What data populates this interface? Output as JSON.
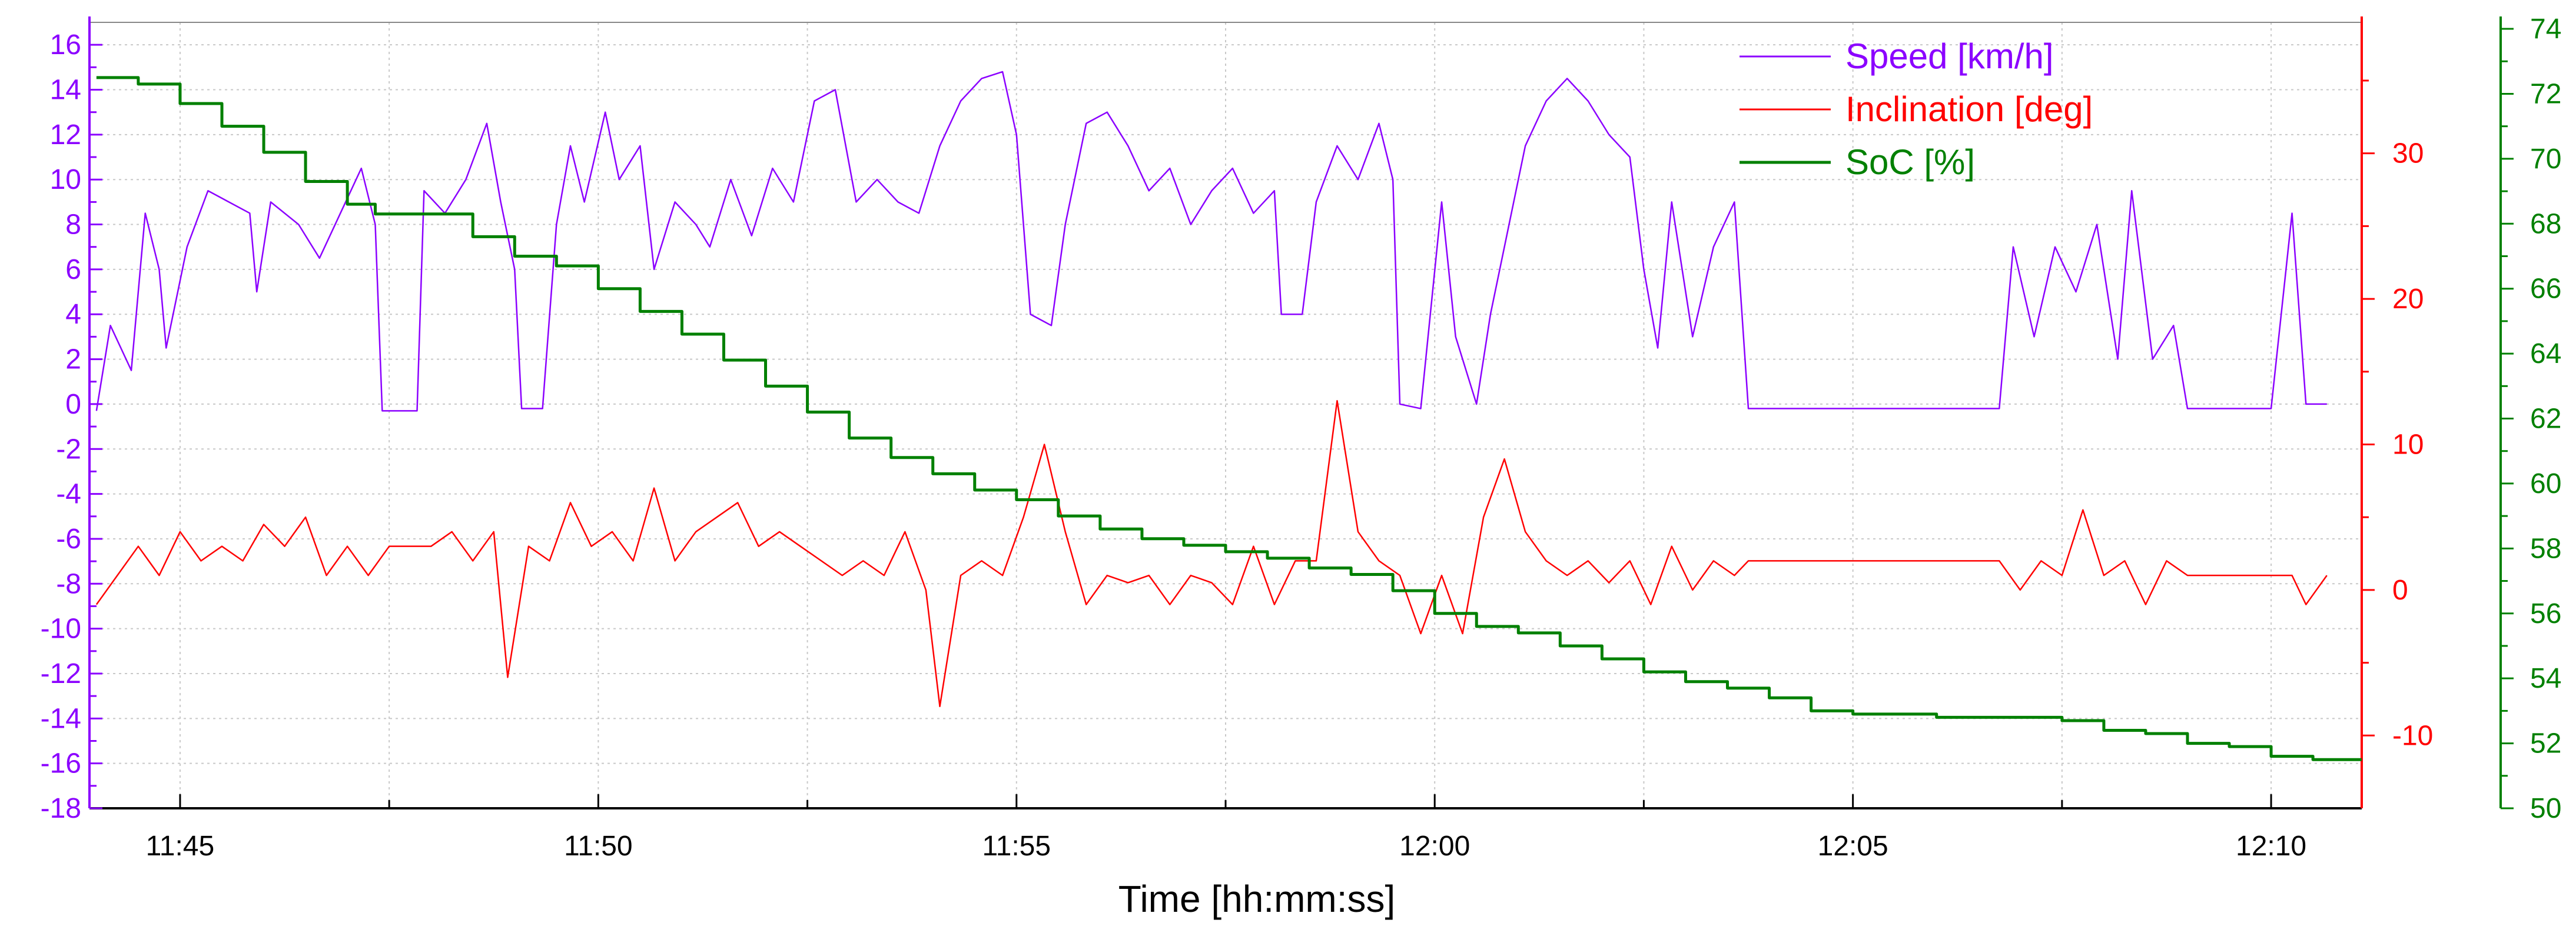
{
  "chart_data": {
    "type": "line",
    "xlabel": "Time [hh:mm:ss]",
    "x_range": [
      "11:43:55",
      "12:11:05"
    ],
    "x_ticks": [
      "11:45",
      "11:50",
      "11:55",
      "12:00",
      "12:05",
      "12:10"
    ],
    "grid": true,
    "legend_placement": "top-right",
    "axes": [
      {
        "id": "speed",
        "side": "left",
        "min": -18,
        "max": 17,
        "ticks": [
          "16",
          "14",
          "12",
          "10",
          "8",
          "6",
          "4",
          "2",
          "0",
          "-2",
          "-4",
          "-6",
          "-8",
          "-10",
          "-12",
          "-14",
          "-16",
          "-18"
        ],
        "color": "#8b00ff"
      },
      {
        "id": "incl",
        "side": "right-inner",
        "min": -15,
        "max": 39,
        "ticks": [
          "30",
          "20",
          "10",
          "0",
          "-10"
        ],
        "color": "#ff0000"
      },
      {
        "id": "soc",
        "side": "right-outer",
        "min": 50,
        "max": 74.2,
        "ticks": [
          "74",
          "72",
          "70",
          "68",
          "66",
          "64",
          "62",
          "60",
          "58",
          "56",
          "54",
          "52",
          "50"
        ],
        "color": "#008000"
      }
    ],
    "series": [
      {
        "name": "Speed [km/h]",
        "axis": "speed",
        "color": "#8b00ff",
        "step": false,
        "points": [
          [
            "11:44:00",
            -0.3
          ],
          [
            "11:44:10",
            3.5
          ],
          [
            "11:44:25",
            1.5
          ],
          [
            "11:44:35",
            8.5
          ],
          [
            "11:44:45",
            6.0
          ],
          [
            "11:44:50",
            2.5
          ],
          [
            "11:45:05",
            7.0
          ],
          [
            "11:45:20",
            9.5
          ],
          [
            "11:45:35",
            9.0
          ],
          [
            "11:45:50",
            8.5
          ],
          [
            "11:45:55",
            5.0
          ],
          [
            "11:46:05",
            9.0
          ],
          [
            "11:46:25",
            8.0
          ],
          [
            "11:46:40",
            6.5
          ],
          [
            "11:46:55",
            8.5
          ],
          [
            "11:47:10",
            10.5
          ],
          [
            "11:47:20",
            8.0
          ],
          [
            "11:47:25",
            -0.3
          ],
          [
            "11:47:50",
            -0.3
          ],
          [
            "11:47:55",
            9.5
          ],
          [
            "11:48:10",
            8.5
          ],
          [
            "11:48:25",
            10.0
          ],
          [
            "11:48:40",
            12.5
          ],
          [
            "11:48:50",
            9.0
          ],
          [
            "11:49:00",
            6.0
          ],
          [
            "11:49:05",
            -0.2
          ],
          [
            "11:49:20",
            -0.2
          ],
          [
            "11:49:30",
            8.0
          ],
          [
            "11:49:40",
            11.5
          ],
          [
            "11:49:50",
            9.0
          ],
          [
            "11:50:05",
            13.0
          ],
          [
            "11:50:15",
            10.0
          ],
          [
            "11:50:30",
            11.5
          ],
          [
            "11:50:40",
            6.0
          ],
          [
            "11:50:55",
            9.0
          ],
          [
            "11:51:10",
            8.0
          ],
          [
            "11:51:20",
            7.0
          ],
          [
            "11:51:35",
            10.0
          ],
          [
            "11:51:50",
            7.5
          ],
          [
            "11:52:05",
            10.5
          ],
          [
            "11:52:20",
            9.0
          ],
          [
            "11:52:35",
            13.5
          ],
          [
            "11:52:50",
            14.0
          ],
          [
            "11:53:05",
            9.0
          ],
          [
            "11:53:20",
            10.0
          ],
          [
            "11:53:35",
            9.0
          ],
          [
            "11:53:50",
            8.5
          ],
          [
            "11:54:05",
            11.5
          ],
          [
            "11:54:20",
            13.5
          ],
          [
            "11:54:35",
            14.5
          ],
          [
            "11:54:50",
            14.8
          ],
          [
            "11:55:00",
            12.0
          ],
          [
            "11:55:10",
            4.0
          ],
          [
            "11:55:25",
            3.5
          ],
          [
            "11:55:35",
            8.0
          ],
          [
            "11:55:50",
            12.5
          ],
          [
            "11:56:05",
            13.0
          ],
          [
            "11:56:20",
            11.5
          ],
          [
            "11:56:35",
            9.5
          ],
          [
            "11:56:50",
            10.5
          ],
          [
            "11:57:05",
            8.0
          ],
          [
            "11:57:20",
            9.5
          ],
          [
            "11:57:35",
            10.5
          ],
          [
            "11:57:50",
            8.5
          ],
          [
            "11:58:05",
            9.5
          ],
          [
            "11:58:10",
            4.0
          ],
          [
            "11:58:25",
            4.0
          ],
          [
            "11:58:35",
            9.0
          ],
          [
            "11:58:50",
            11.5
          ],
          [
            "11:59:05",
            10.0
          ],
          [
            "11:59:20",
            12.5
          ],
          [
            "11:59:30",
            10.0
          ],
          [
            "11:59:35",
            0.0
          ],
          [
            "11:59:50",
            -0.2
          ],
          [
            "12:00:05",
            9.0
          ],
          [
            "12:00:15",
            3.0
          ],
          [
            "12:00:30",
            0.0
          ],
          [
            "12:00:40",
            4.0
          ],
          [
            "12:00:50",
            7.0
          ],
          [
            "12:01:05",
            11.5
          ],
          [
            "12:01:20",
            13.5
          ],
          [
            "12:01:35",
            14.5
          ],
          [
            "12:01:50",
            13.5
          ],
          [
            "12:02:05",
            12.0
          ],
          [
            "12:02:20",
            11.0
          ],
          [
            "12:02:30",
            6.0
          ],
          [
            "12:02:40",
            2.5
          ],
          [
            "12:02:50",
            9.0
          ],
          [
            "12:03:05",
            3.0
          ],
          [
            "12:03:20",
            7.0
          ],
          [
            "12:03:35",
            9.0
          ],
          [
            "12:03:45",
            -0.2
          ],
          [
            "12:06:45",
            -0.2
          ],
          [
            "12:06:55",
            7.0
          ],
          [
            "12:07:10",
            3.0
          ],
          [
            "12:07:25",
            7.0
          ],
          [
            "12:07:40",
            5.0
          ],
          [
            "12:07:55",
            8.0
          ],
          [
            "12:08:10",
            2.0
          ],
          [
            "12:08:20",
            9.5
          ],
          [
            "12:08:35",
            2.0
          ],
          [
            "12:08:50",
            3.5
          ],
          [
            "12:09:00",
            -0.2
          ],
          [
            "12:10:00",
            -0.2
          ],
          [
            "12:10:15",
            8.5
          ],
          [
            "12:10:25",
            0.0
          ],
          [
            "12:10:40",
            0.0
          ]
        ]
      },
      {
        "name": "Inclination [deg]",
        "axis": "incl",
        "color": "#ff0000",
        "step": false,
        "points": [
          [
            "11:44:00",
            -1.0
          ],
          [
            "11:44:15",
            1.0
          ],
          [
            "11:44:30",
            3.0
          ],
          [
            "11:44:45",
            1.0
          ],
          [
            "11:45:00",
            4.0
          ],
          [
            "11:45:15",
            2.0
          ],
          [
            "11:45:30",
            3.0
          ],
          [
            "11:45:45",
            2.0
          ],
          [
            "11:46:00",
            4.5
          ],
          [
            "11:46:15",
            3.0
          ],
          [
            "11:46:30",
            5.0
          ],
          [
            "11:46:45",
            1.0
          ],
          [
            "11:47:00",
            3.0
          ],
          [
            "11:47:15",
            1.0
          ],
          [
            "11:47:30",
            3.0
          ],
          [
            "11:48:00",
            3.0
          ],
          [
            "11:48:15",
            4.0
          ],
          [
            "11:48:30",
            2.0
          ],
          [
            "11:48:45",
            4.0
          ],
          [
            "11:48:55",
            -6.0
          ],
          [
            "11:49:10",
            3.0
          ],
          [
            "11:49:25",
            2.0
          ],
          [
            "11:49:40",
            6.0
          ],
          [
            "11:49:55",
            3.0
          ],
          [
            "11:50:10",
            4.0
          ],
          [
            "11:50:25",
            2.0
          ],
          [
            "11:50:40",
            7.0
          ],
          [
            "11:50:55",
            2.0
          ],
          [
            "11:51:10",
            4.0
          ],
          [
            "11:51:25",
            5.0
          ],
          [
            "11:51:40",
            6.0
          ],
          [
            "11:51:55",
            3.0
          ],
          [
            "11:52:10",
            4.0
          ],
          [
            "11:52:25",
            3.0
          ],
          [
            "11:52:40",
            2.0
          ],
          [
            "11:52:55",
            1.0
          ],
          [
            "11:53:10",
            2.0
          ],
          [
            "11:53:25",
            1.0
          ],
          [
            "11:53:40",
            4.0
          ],
          [
            "11:53:55",
            0.0
          ],
          [
            "11:54:05",
            -8.0
          ],
          [
            "11:54:20",
            1.0
          ],
          [
            "11:54:35",
            2.0
          ],
          [
            "11:54:50",
            1.0
          ],
          [
            "11:55:05",
            5.0
          ],
          [
            "11:55:20",
            10.0
          ],
          [
            "11:55:35",
            4.0
          ],
          [
            "11:55:50",
            -1.0
          ],
          [
            "11:56:05",
            1.0
          ],
          [
            "11:56:20",
            0.5
          ],
          [
            "11:56:35",
            1.0
          ],
          [
            "11:56:50",
            -1.0
          ],
          [
            "11:57:05",
            1.0
          ],
          [
            "11:57:20",
            0.5
          ],
          [
            "11:57:35",
            -1.0
          ],
          [
            "11:57:50",
            3.0
          ],
          [
            "11:58:05",
            -1.0
          ],
          [
            "11:58:20",
            2.0
          ],
          [
            "11:58:35",
            2.0
          ],
          [
            "11:58:50",
            13.0
          ],
          [
            "11:59:05",
            4.0
          ],
          [
            "11:59:20",
            2.0
          ],
          [
            "11:59:35",
            1.0
          ],
          [
            "11:59:50",
            -3.0
          ],
          [
            "12:00:05",
            1.0
          ],
          [
            "12:00:20",
            -3.0
          ],
          [
            "12:00:35",
            5.0
          ],
          [
            "12:00:50",
            9.0
          ],
          [
            "12:01:05",
            4.0
          ],
          [
            "12:01:20",
            2.0
          ],
          [
            "12:01:35",
            1.0
          ],
          [
            "12:01:50",
            2.0
          ],
          [
            "12:02:05",
            0.5
          ],
          [
            "12:02:20",
            2.0
          ],
          [
            "12:02:35",
            -1.0
          ],
          [
            "12:02:50",
            3.0
          ],
          [
            "12:03:05",
            0.0
          ],
          [
            "12:03:20",
            2.0
          ],
          [
            "12:03:35",
            1.0
          ],
          [
            "12:03:45",
            2.0
          ],
          [
            "12:06:45",
            2.0
          ],
          [
            "12:07:00",
            0.0
          ],
          [
            "12:07:15",
            2.0
          ],
          [
            "12:07:30",
            1.0
          ],
          [
            "12:07:45",
            5.5
          ],
          [
            "12:08:00",
            1.0
          ],
          [
            "12:08:15",
            2.0
          ],
          [
            "12:08:30",
            -1.0
          ],
          [
            "12:08:45",
            2.0
          ],
          [
            "12:09:00",
            1.0
          ],
          [
            "12:10:15",
            1.0
          ],
          [
            "12:10:25",
            -1.0
          ],
          [
            "12:10:40",
            1.0
          ]
        ]
      },
      {
        "name": "SoC [%]",
        "axis": "soc",
        "color": "#008000",
        "step": true,
        "points": [
          [
            "11:44:00",
            72.5
          ],
          [
            "11:44:30",
            72.3
          ],
          [
            "11:45:00",
            71.7
          ],
          [
            "11:45:30",
            71.0
          ],
          [
            "11:46:00",
            70.2
          ],
          [
            "11:46:30",
            69.3
          ],
          [
            "11:47:00",
            68.6
          ],
          [
            "11:47:20",
            68.3
          ],
          [
            "11:48:00",
            68.3
          ],
          [
            "11:48:30",
            67.6
          ],
          [
            "11:49:00",
            67.0
          ],
          [
            "11:49:30",
            66.7
          ],
          [
            "11:50:00",
            66.0
          ],
          [
            "11:50:30",
            65.3
          ],
          [
            "11:51:00",
            64.6
          ],
          [
            "11:51:30",
            63.8
          ],
          [
            "11:52:00",
            63.0
          ],
          [
            "11:52:30",
            62.2
          ],
          [
            "11:53:00",
            61.4
          ],
          [
            "11:53:30",
            60.8
          ],
          [
            "11:54:00",
            60.3
          ],
          [
            "11:54:30",
            59.8
          ],
          [
            "11:55:00",
            59.5
          ],
          [
            "11:55:30",
            59.0
          ],
          [
            "11:56:00",
            58.6
          ],
          [
            "11:56:30",
            58.3
          ],
          [
            "11:57:00",
            58.1
          ],
          [
            "11:57:30",
            57.9
          ],
          [
            "11:58:00",
            57.7
          ],
          [
            "11:58:30",
            57.4
          ],
          [
            "11:59:00",
            57.2
          ],
          [
            "11:59:30",
            56.7
          ],
          [
            "12:00:00",
            56.0
          ],
          [
            "12:00:30",
            55.6
          ],
          [
            "12:01:00",
            55.4
          ],
          [
            "12:01:30",
            55.0
          ],
          [
            "12:02:00",
            54.6
          ],
          [
            "12:02:30",
            54.2
          ],
          [
            "12:03:00",
            53.9
          ],
          [
            "12:03:30",
            53.7
          ],
          [
            "12:04:00",
            53.4
          ],
          [
            "12:04:30",
            53.0
          ],
          [
            "12:05:00",
            52.9
          ],
          [
            "12:05:30",
            52.9
          ],
          [
            "12:06:00",
            52.8
          ],
          [
            "12:07:00",
            52.8
          ],
          [
            "12:07:30",
            52.7
          ],
          [
            "12:08:00",
            52.4
          ],
          [
            "12:08:30",
            52.3
          ],
          [
            "12:09:00",
            52.0
          ],
          [
            "12:09:30",
            51.9
          ],
          [
            "12:10:00",
            51.6
          ],
          [
            "12:10:30",
            51.5
          ],
          [
            "12:11:05",
            51.5
          ]
        ]
      }
    ]
  }
}
